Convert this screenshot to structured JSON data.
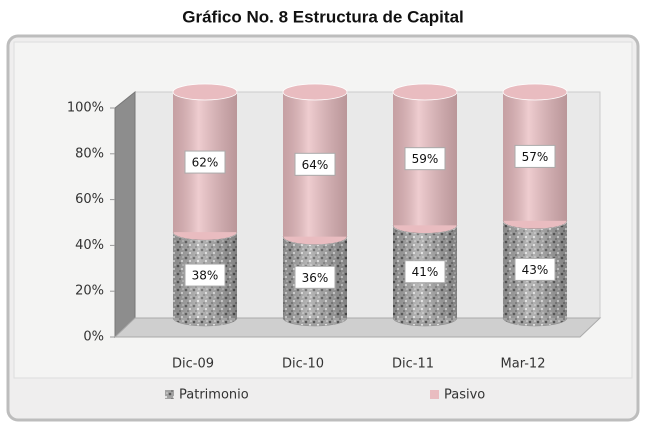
{
  "chart_data": {
    "type": "bar",
    "title": "Gráfico No. 8 Estructura de Capital",
    "stacked": true,
    "categories": [
      "Dic-09",
      "Dic-10",
      "Dic-11",
      "Mar-12"
    ],
    "series": [
      {
        "name": "Patrimonio",
        "color": "#9a9a9a",
        "values": [
          38,
          36,
          41,
          43
        ],
        "value_labels": [
          "38%",
          "36%",
          "41%",
          "43%"
        ]
      },
      {
        "name": "Pasivo",
        "color": "#e9bcc0",
        "values": [
          62,
          64,
          59,
          57
        ],
        "value_labels": [
          "62%",
          "64%",
          "59%",
          "57%"
        ]
      }
    ],
    "ylim": [
      0,
      100
    ],
    "yticks": [
      {
        "value": 0,
        "label": "0%"
      },
      {
        "value": 20,
        "label": "20%"
      },
      {
        "value": 40,
        "label": "40%"
      },
      {
        "value": 60,
        "label": "60%"
      },
      {
        "value": 80,
        "label": "80%"
      },
      {
        "value": 100,
        "label": "100%"
      }
    ],
    "legend": "bottom"
  }
}
